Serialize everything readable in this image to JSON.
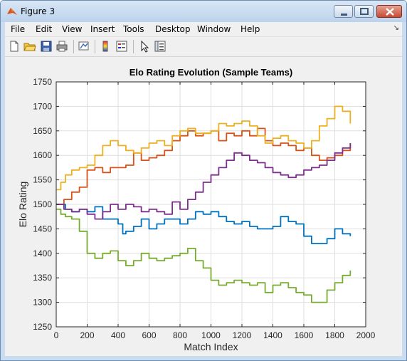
{
  "window": {
    "title": "Figure 3",
    "controls": [
      "minimize",
      "maximize",
      "close"
    ]
  },
  "menu": {
    "items": [
      "File",
      "Edit",
      "View",
      "Insert",
      "Tools",
      "Desktop",
      "Window",
      "Help"
    ]
  },
  "toolbar": {
    "icons": [
      "new-figure-icon",
      "open-file-icon",
      "save-icon",
      "print-icon",
      "link-plot-icon",
      "colorbar-icon",
      "legend-icon",
      "pointer-icon",
      "property-inspector-icon"
    ]
  },
  "colors": {
    "blue": "#0072BD",
    "orange": "#D95319",
    "yellow": "#EDB120",
    "purple": "#7E2F8E",
    "green": "#77AC30"
  },
  "chart_data": {
    "type": "line",
    "title": "Elo Rating Evolution (Sample Teams)",
    "xlabel": "Match Index",
    "ylabel": "Elo Rating",
    "xlim": [
      0,
      2000
    ],
    "ylim": [
      1250,
      1750
    ],
    "xticks": [
      "0",
      "200",
      "400",
      "600",
      "800",
      "1000",
      "1200",
      "1400",
      "1600",
      "1800",
      "2000"
    ],
    "yticks": [
      "1250",
      "1300",
      "1350",
      "1400",
      "1450",
      "1500",
      "1550",
      "1600",
      "1650",
      "1700",
      "1750"
    ],
    "grid": true,
    "series": [
      {
        "color": "#0072BD",
        "x": [
          0,
          30,
          60,
          100,
          150,
          200,
          250,
          300,
          350,
          400,
          430,
          450,
          500,
          550,
          600,
          650,
          700,
          750,
          800,
          850,
          900,
          950,
          1000,
          1050,
          1100,
          1150,
          1200,
          1250,
          1300,
          1350,
          1400,
          1450,
          1500,
          1550,
          1600,
          1650,
          1700,
          1750,
          1800,
          1850,
          1900
        ],
        "y": [
          1500,
          1500,
          1490,
          1485,
          1490,
          1485,
          1495,
          1470,
          1470,
          1460,
          1440,
          1445,
          1455,
          1470,
          1450,
          1460,
          1470,
          1470,
          1460,
          1470,
          1485,
          1480,
          1485,
          1475,
          1465,
          1460,
          1465,
          1455,
          1450,
          1450,
          1455,
          1475,
          1465,
          1460,
          1435,
          1420,
          1420,
          1430,
          1450,
          1440,
          1435
        ]
      },
      {
        "color": "#D95319",
        "x": [
          0,
          50,
          100,
          150,
          200,
          250,
          300,
          350,
          400,
          450,
          500,
          550,
          600,
          650,
          700,
          750,
          800,
          850,
          900,
          950,
          1000,
          1050,
          1100,
          1150,
          1200,
          1250,
          1300,
          1350,
          1400,
          1450,
          1500,
          1550,
          1600,
          1650,
          1700,
          1750,
          1800,
          1850,
          1900
        ],
        "y": [
          1500,
          1510,
          1525,
          1535,
          1570,
          1575,
          1565,
          1575,
          1575,
          1580,
          1605,
          1590,
          1595,
          1600,
          1610,
          1630,
          1640,
          1650,
          1640,
          1645,
          1650,
          1630,
          1645,
          1640,
          1650,
          1640,
          1655,
          1630,
          1620,
          1625,
          1620,
          1610,
          1615,
          1600,
          1590,
          1595,
          1600,
          1610,
          1625
        ]
      },
      {
        "color": "#EDB120",
        "x": [
          0,
          30,
          60,
          100,
          150,
          200,
          250,
          300,
          350,
          400,
          450,
          500,
          550,
          600,
          650,
          700,
          750,
          800,
          850,
          900,
          950,
          1000,
          1050,
          1100,
          1150,
          1200,
          1250,
          1300,
          1350,
          1400,
          1450,
          1500,
          1550,
          1600,
          1650,
          1700,
          1750,
          1800,
          1850,
          1900
        ],
        "y": [
          1530,
          1545,
          1560,
          1570,
          1575,
          1580,
          1600,
          1620,
          1630,
          1620,
          1610,
          1605,
          1615,
          1625,
          1630,
          1620,
          1640,
          1650,
          1655,
          1645,
          1645,
          1650,
          1665,
          1660,
          1665,
          1670,
          1660,
          1640,
          1625,
          1635,
          1640,
          1630,
          1625,
          1615,
          1630,
          1660,
          1675,
          1700,
          1690,
          1665
        ]
      },
      {
        "color": "#7E2F8E",
        "x": [
          0,
          50,
          100,
          150,
          200,
          250,
          300,
          350,
          400,
          450,
          500,
          550,
          600,
          650,
          700,
          750,
          800,
          850,
          900,
          950,
          1000,
          1050,
          1100,
          1150,
          1200,
          1250,
          1300,
          1350,
          1400,
          1450,
          1500,
          1550,
          1600,
          1650,
          1700,
          1750,
          1800,
          1850,
          1900
        ],
        "y": [
          1500,
          1490,
          1485,
          1490,
          1480,
          1470,
          1485,
          1500,
          1490,
          1500,
          1495,
          1485,
          1490,
          1485,
          1480,
          1505,
          1490,
          1510,
          1525,
          1545,
          1560,
          1575,
          1590,
          1605,
          1600,
          1590,
          1585,
          1575,
          1565,
          1560,
          1555,
          1560,
          1570,
          1575,
          1580,
          1590,
          1605,
          1615,
          1625
        ]
      },
      {
        "color": "#77AC30",
        "x": [
          0,
          30,
          60,
          100,
          150,
          200,
          250,
          300,
          350,
          400,
          450,
          500,
          550,
          600,
          650,
          700,
          750,
          800,
          850,
          900,
          950,
          1000,
          1050,
          1100,
          1150,
          1200,
          1250,
          1300,
          1350,
          1400,
          1450,
          1500,
          1550,
          1600,
          1650,
          1700,
          1750,
          1800,
          1850,
          1900
        ],
        "y": [
          1490,
          1480,
          1475,
          1470,
          1445,
          1400,
          1390,
          1400,
          1405,
          1385,
          1375,
          1385,
          1400,
          1390,
          1385,
          1390,
          1395,
          1400,
          1410,
          1385,
          1370,
          1345,
          1335,
          1340,
          1345,
          1340,
          1335,
          1340,
          1320,
          1335,
          1340,
          1330,
          1320,
          1315,
          1300,
          1300,
          1325,
          1340,
          1355,
          1365
        ]
      }
    ]
  }
}
